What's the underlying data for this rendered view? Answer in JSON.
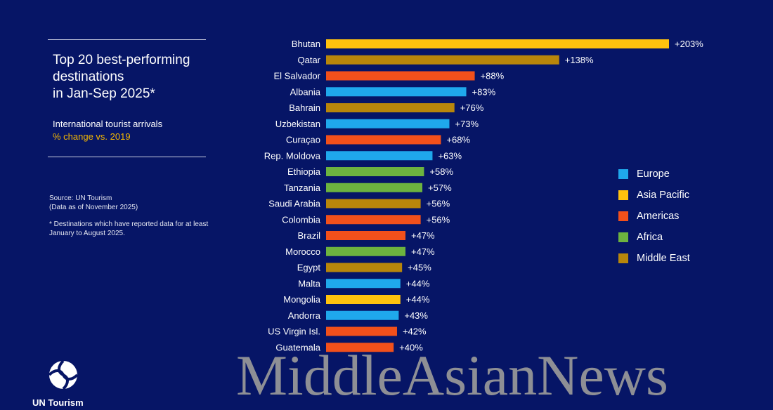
{
  "chart_data": {
    "type": "bar",
    "orientation": "horizontal",
    "title": "Top 20 best-performing destinations in Jan-Sep 2025*",
    "subtitle_line1": "International tourist arrivals",
    "subtitle_line2": "% change vs. 2019",
    "categories": [
      "Bhutan",
      "Qatar",
      "El Salvador",
      "Albania",
      "Bahrain",
      "Uzbekistan",
      "Curaçao",
      "Rep. Moldova",
      "Ethiopia",
      "Tanzania",
      "Saudi Arabia",
      "Colombia",
      "Brazil",
      "Morocco",
      "Egypt",
      "Malta",
      "Mongolia",
      "Andorra",
      "US Virgin Isl.",
      "Guatemala"
    ],
    "values": [
      203,
      138,
      88,
      83,
      76,
      73,
      68,
      63,
      58,
      57,
      56,
      56,
      47,
      47,
      45,
      44,
      44,
      43,
      42,
      40
    ],
    "value_labels": [
      "+203%",
      "+138%",
      "+88%",
      "+83%",
      "+76%",
      "+73%",
      "+68%",
      "+63%",
      "+58%",
      "+57%",
      "+56%",
      "+56%",
      "+47%",
      "+47%",
      "+45%",
      "+44%",
      "+44%",
      "+43%",
      "+42%",
      "+40%"
    ],
    "regions": [
      "Asia Pacific",
      "Middle East",
      "Americas",
      "Europe",
      "Middle East",
      "Europe",
      "Americas",
      "Europe",
      "Africa",
      "Africa",
      "Middle East",
      "Americas",
      "Americas",
      "Africa",
      "Middle East",
      "Europe",
      "Asia Pacific",
      "Europe",
      "Americas",
      "Americas"
    ],
    "legend": [
      {
        "name": "Europe",
        "color": "#1fa8ec"
      },
      {
        "name": "Asia Pacific",
        "color": "#ffc20e"
      },
      {
        "name": "Americas",
        "color": "#f2501b"
      },
      {
        "name": "Africa",
        "color": "#6db33f"
      },
      {
        "name": "Middle East",
        "color": "#b8860b"
      }
    ],
    "legend_position": "right",
    "xlim": [
      0,
      203
    ],
    "grid": false
  },
  "panel": {
    "title": "Top 20 best-performing\ndestinations\nin Jan-Sep 2025*",
    "subtitle": "International tourist arrivals",
    "subtitle_highlight": "% change vs. 2019",
    "source_line1": "Source: UN Tourism",
    "source_line2": "(Data as of November 2025)",
    "note": "* Destinations which have reported data for at least January to August 2025."
  },
  "logo": {
    "name": "UN Tourism",
    "icon": "un-tourism-globe-icon"
  },
  "watermark": "MiddleAsianNews"
}
